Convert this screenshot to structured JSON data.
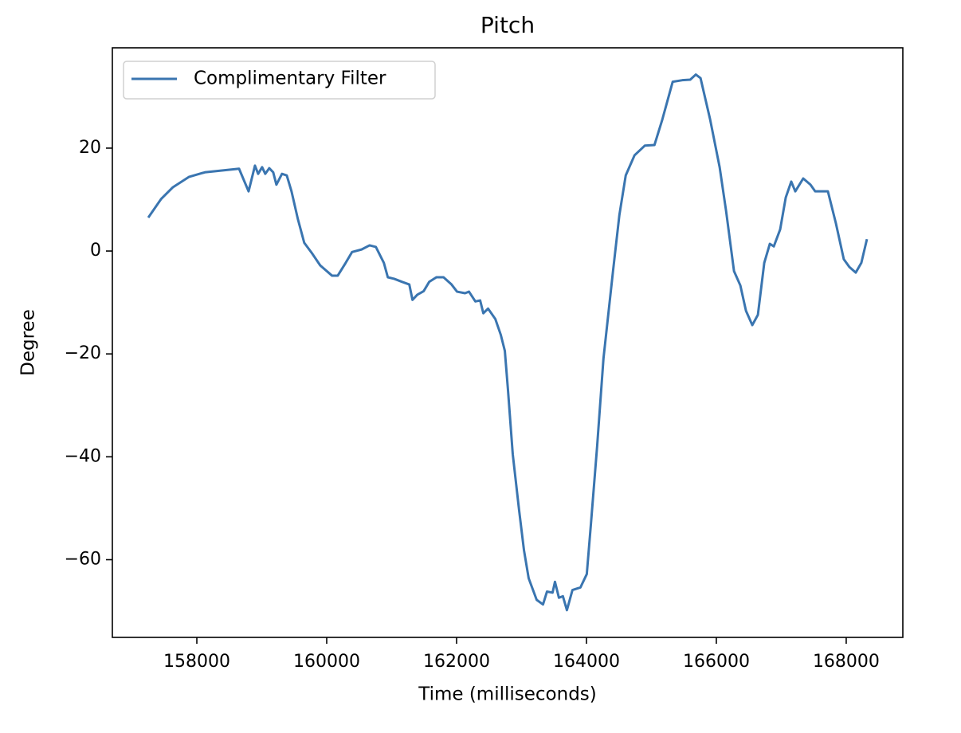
{
  "chart_data": {
    "type": "line",
    "title": "Pitch",
    "xlabel": "Time (milliseconds)",
    "ylabel": "Degree",
    "legend": "upper left",
    "xlim": [
      156699,
      168872
    ],
    "ylim": [
      -75.1,
      39.5
    ],
    "xticks": [
      158000,
      160000,
      162000,
      164000,
      166000,
      168000
    ],
    "yticks": [
      {
        "value": -60,
        "label": "−60"
      },
      {
        "value": -40,
        "label": "−40"
      },
      {
        "value": -20,
        "label": "−20"
      },
      0,
      20
    ],
    "x": [
      157252,
      157449,
      157632,
      157877,
      158123,
      158650,
      158797,
      158895,
      158944,
      159005,
      159054,
      159115,
      159176,
      159225,
      159311,
      159385,
      159458,
      159556,
      159654,
      159777,
      159900,
      160083,
      160169,
      160292,
      160390,
      160537,
      160660,
      160757,
      160880,
      160941,
      161039,
      161162,
      161272,
      161321,
      161395,
      161493,
      161578,
      161689,
      161799,
      161922,
      162007,
      162130,
      162191,
      162289,
      162363,
      162412,
      162485,
      162596,
      162681,
      162743,
      162792,
      162865,
      162963,
      163037,
      163110,
      163233,
      163331,
      163392,
      163478,
      163515,
      163576,
      163637,
      163699,
      163784,
      163907,
      164005,
      164066,
      164164,
      164262,
      164409,
      164507,
      164605,
      164740,
      164900,
      165047,
      165169,
      165328,
      165475,
      165598,
      165684,
      165757,
      165904,
      166051,
      166150,
      166272,
      166370,
      166456,
      166554,
      166640,
      166738,
      166824,
      166885,
      166983,
      167069,
      167154,
      167216,
      167338,
      167449,
      167522,
      167620,
      167718,
      167841,
      167963,
      168049,
      168147,
      168233,
      168319
    ],
    "series": [
      {
        "name": "Complimentary Filter",
        "color": "#3a75b0",
        "values": [
          6.5,
          10.1,
          12.4,
          14.4,
          15.3,
          16,
          11.6,
          16.6,
          15,
          16.3,
          15,
          16.1,
          15.3,
          12.9,
          15,
          14.7,
          11.6,
          6.2,
          1.6,
          -0.5,
          -2.8,
          -4.8,
          -4.8,
          -2.3,
          -0.2,
          0.3,
          1.1,
          0.8,
          -2.3,
          -5.1,
          -5.4,
          -6.0,
          -6.5,
          -9.5,
          -8.5,
          -7.8,
          -6.0,
          -5.1,
          -5.1,
          -6.5,
          -7.9,
          -8.2,
          -7.9,
          -9.8,
          -9.6,
          -12.1,
          -11.2,
          -13.2,
          -16.3,
          -19.4,
          -27.1,
          -39.5,
          -50.4,
          -58.1,
          -63.6,
          -67.8,
          -68.7,
          -66.2,
          -66.4,
          -64.3,
          -67.4,
          -67.1,
          -69.8,
          -65.9,
          -65.4,
          -62.8,
          -53.5,
          -38,
          -20.9,
          -3.9,
          7,
          14.7,
          18.6,
          20.5,
          20.6,
          25.6,
          32.9,
          33.2,
          33.3,
          34.3,
          33.6,
          25.6,
          16.3,
          7.8,
          -3.9,
          -6.7,
          -11.6,
          -14.4,
          -12.4,
          -2.3,
          1.4,
          0.9,
          4.2,
          10.4,
          13.5,
          11.6,
          14.1,
          12.9,
          11.6,
          11.6,
          11.6,
          5.4,
          -1.6,
          -3.1,
          -4.2,
          -2.3,
          2.3
        ]
      }
    ]
  }
}
